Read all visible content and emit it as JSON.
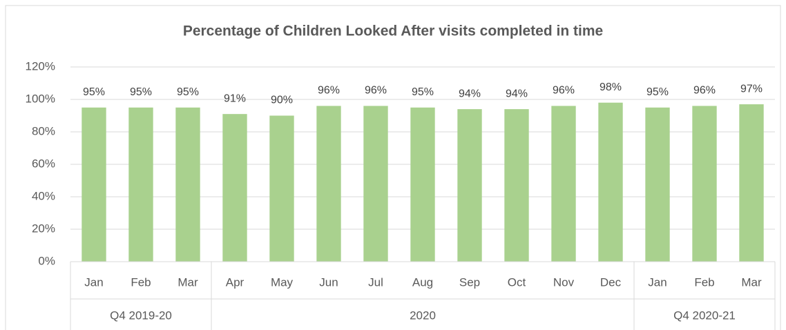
{
  "chart_data": {
    "type": "bar",
    "title": "Percentage of Children Looked After visits completed in time",
    "categories": [
      "Jan",
      "Feb",
      "Mar",
      "Apr",
      "May",
      "Jun",
      "Jul",
      "Aug",
      "Sep",
      "Oct",
      "Nov",
      "Dec",
      "Jan",
      "Feb",
      "Mar"
    ],
    "category_groups": [
      {
        "label": "Q4 2019-20",
        "count": 3
      },
      {
        "label": "2020",
        "count": 9
      },
      {
        "label": "Q4 2020-21",
        "count": 3
      }
    ],
    "values": [
      95,
      95,
      95,
      91,
      90,
      96,
      96,
      95,
      94,
      94,
      96,
      98,
      95,
      96,
      97
    ],
    "value_labels": [
      "95%",
      "95%",
      "95%",
      "91%",
      "90%",
      "96%",
      "96%",
      "95%",
      "94%",
      "94%",
      "96%",
      "98%",
      "95%",
      "96%",
      "97%"
    ],
    "color": "#a9d18e",
    "ylim": [
      0,
      120
    ],
    "yticks": [
      {
        "value": 0,
        "label": "0%"
      },
      {
        "value": 20,
        "label": "20%"
      },
      {
        "value": 40,
        "label": "40%"
      },
      {
        "value": 60,
        "label": "60%"
      },
      {
        "value": 80,
        "label": "80%"
      },
      {
        "value": 100,
        "label": "100%"
      },
      {
        "value": 120,
        "label": "120%"
      }
    ],
    "grid": true
  }
}
